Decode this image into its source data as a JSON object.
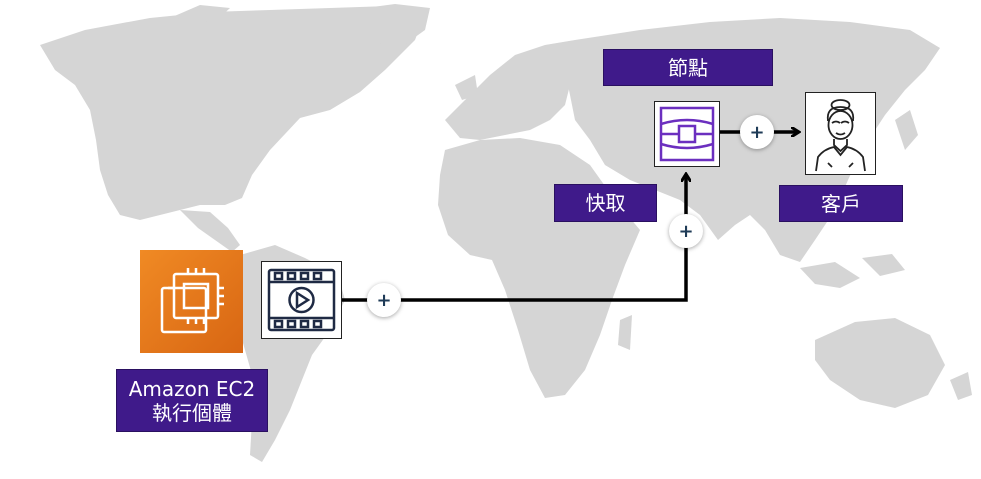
{
  "labels": {
    "node": "節點",
    "cache": "快取",
    "client": "客戶",
    "ec2_line1": "Amazon EC2",
    "ec2_line2": "執行個體"
  },
  "plus_symbol": "+",
  "colors": {
    "label_bg": "#3f1a8a",
    "ec2_orange": "#e8791d",
    "map_gray": "#d5d5d5",
    "connector": "#000000",
    "cache_icon": "#6b2fbf"
  },
  "icons": [
    "ec2-instance-icon",
    "video-file-icon",
    "cache-node-icon",
    "client-user-icon",
    "plus-icon",
    "arrow-icon"
  ]
}
